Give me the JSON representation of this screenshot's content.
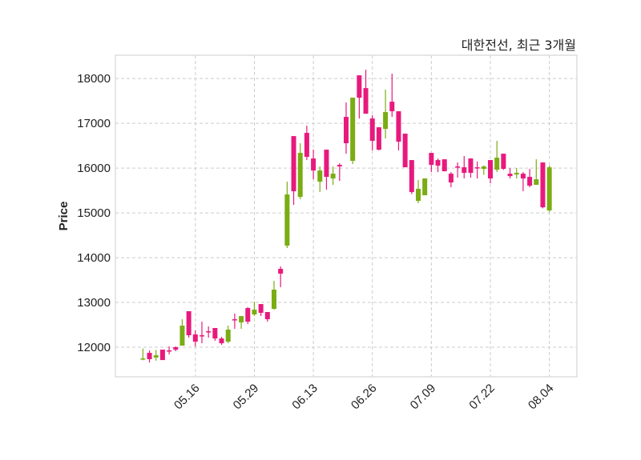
{
  "chart_data": {
    "type": "candlestick",
    "title": "대한전선, 최근 3개월",
    "xlabel": "",
    "ylabel": "Price",
    "ylim": [
      11340,
      18520
    ],
    "xlim": [
      -3.2,
      67.2
    ],
    "grid": true,
    "colors": {
      "up": "#e8197d",
      "down": "#7aac14",
      "grid": "#cccccc",
      "frame": "#dddddd"
    },
    "yticks": [
      12000,
      13000,
      14000,
      15000,
      16000,
      17000,
      18000
    ],
    "xticks": [
      {
        "index": 9,
        "label": "05.16"
      },
      {
        "index": 18,
        "label": "05.29"
      },
      {
        "index": 27,
        "label": "06.13"
      },
      {
        "index": 36,
        "label": "06.26"
      },
      {
        "index": 45,
        "label": "07.09"
      },
      {
        "index": 54,
        "label": "07.22"
      },
      {
        "index": 63,
        "label": "08.04"
      }
    ],
    "ohlc_fields": [
      "open",
      "high",
      "low",
      "close"
    ],
    "candles": [
      [
        11750,
        11970,
        11710,
        11740
      ],
      [
        11733,
        11930,
        11660,
        11875
      ],
      [
        11820,
        11940,
        11700,
        11770
      ],
      [
        11714,
        11946,
        11714,
        11946
      ],
      [
        11920,
        12018,
        11840,
        11930
      ],
      [
        11946,
        12020,
        11910,
        12000
      ],
      [
        12482,
        12625,
        12036,
        12036
      ],
      [
        12268,
        12804,
        12214,
        12804
      ],
      [
        12125,
        12375,
        12018,
        12286
      ],
      [
        12260,
        12571,
        12089,
        12268
      ],
      [
        12350,
        12464,
        12214,
        12357
      ],
      [
        12196,
        12429,
        12143,
        12429
      ],
      [
        12089,
        12232,
        12054,
        12196
      ],
      [
        12393,
        12482,
        12089,
        12125
      ],
      [
        12620,
        12750,
        12411,
        12625
      ],
      [
        12696,
        12696,
        12411,
        12554
      ],
      [
        12571,
        12893,
        12518,
        12875
      ],
      [
        12839,
        13018,
        12696,
        12732
      ],
      [
        12768,
        12964,
        12696,
        12964
      ],
      [
        12625,
        12786,
        12571,
        12786
      ],
      [
        13286,
        13482,
        12839,
        12857
      ],
      [
        13643,
        13804,
        13340,
        13750
      ],
      [
        15411,
        15696,
        14214,
        14268
      ],
      [
        15482,
        16714,
        15180,
        16714
      ],
      [
        16339,
        16554,
        15304,
        15357
      ],
      [
        16250,
        16946,
        16179,
        16786
      ],
      [
        15946,
        16411,
        15750,
        16214
      ],
      [
        15946,
        16036,
        15464,
        15696
      ],
      [
        15804,
        16411,
        15518,
        16411
      ],
      [
        15875,
        16036,
        15625,
        15768
      ],
      [
        16036,
        16107,
        15714,
        16071
      ],
      [
        16554,
        17464,
        16321,
        17143
      ],
      [
        17571,
        17571,
        16089,
        16161
      ],
      [
        17571,
        18071,
        17107,
        18071
      ],
      [
        17214,
        18196,
        17214,
        17786
      ],
      [
        16607,
        17179,
        16393,
        17107
      ],
      [
        16411,
        16911,
        16393,
        16911
      ],
      [
        17250,
        17750,
        16661,
        16875
      ],
      [
        17268,
        18107,
        17143,
        17482
      ],
      [
        16589,
        17268,
        16393,
        17268
      ],
      [
        16018,
        16768,
        16018,
        16768
      ],
      [
        15464,
        16179,
        15420,
        16179
      ],
      [
        15536,
        15732,
        15214,
        15268
      ],
      [
        15768,
        15768,
        15393,
        15393
      ],
      [
        16071,
        16339,
        15911,
        16339
      ],
      [
        16054,
        16214,
        15911,
        16179
      ],
      [
        15929,
        16196,
        15929,
        16196
      ],
      [
        15679,
        15911,
        15571,
        15875
      ],
      [
        16030,
        16125,
        15786,
        16036
      ],
      [
        15893,
        16268,
        15768,
        16018
      ],
      [
        15893,
        16214,
        15786,
        16214
      ],
      [
        16010,
        16143,
        15768,
        16018
      ],
      [
        16036,
        16060,
        15850,
        15982
      ],
      [
        15768,
        16179,
        15661,
        16179
      ],
      [
        16232,
        16607,
        15911,
        15964
      ],
      [
        15982,
        16321,
        15960,
        16321
      ],
      [
        15821,
        16000,
        15768,
        15875
      ],
      [
        15893,
        16000,
        15768,
        15857
      ],
      [
        15768,
        15911,
        15482,
        15875
      ],
      [
        15607,
        15982,
        15571,
        15804
      ],
      [
        15750,
        16196,
        15625,
        15625
      ],
      [
        15125,
        16125,
        15100,
        16125
      ],
      [
        16018,
        16060,
        15020,
        15054
      ]
    ]
  }
}
